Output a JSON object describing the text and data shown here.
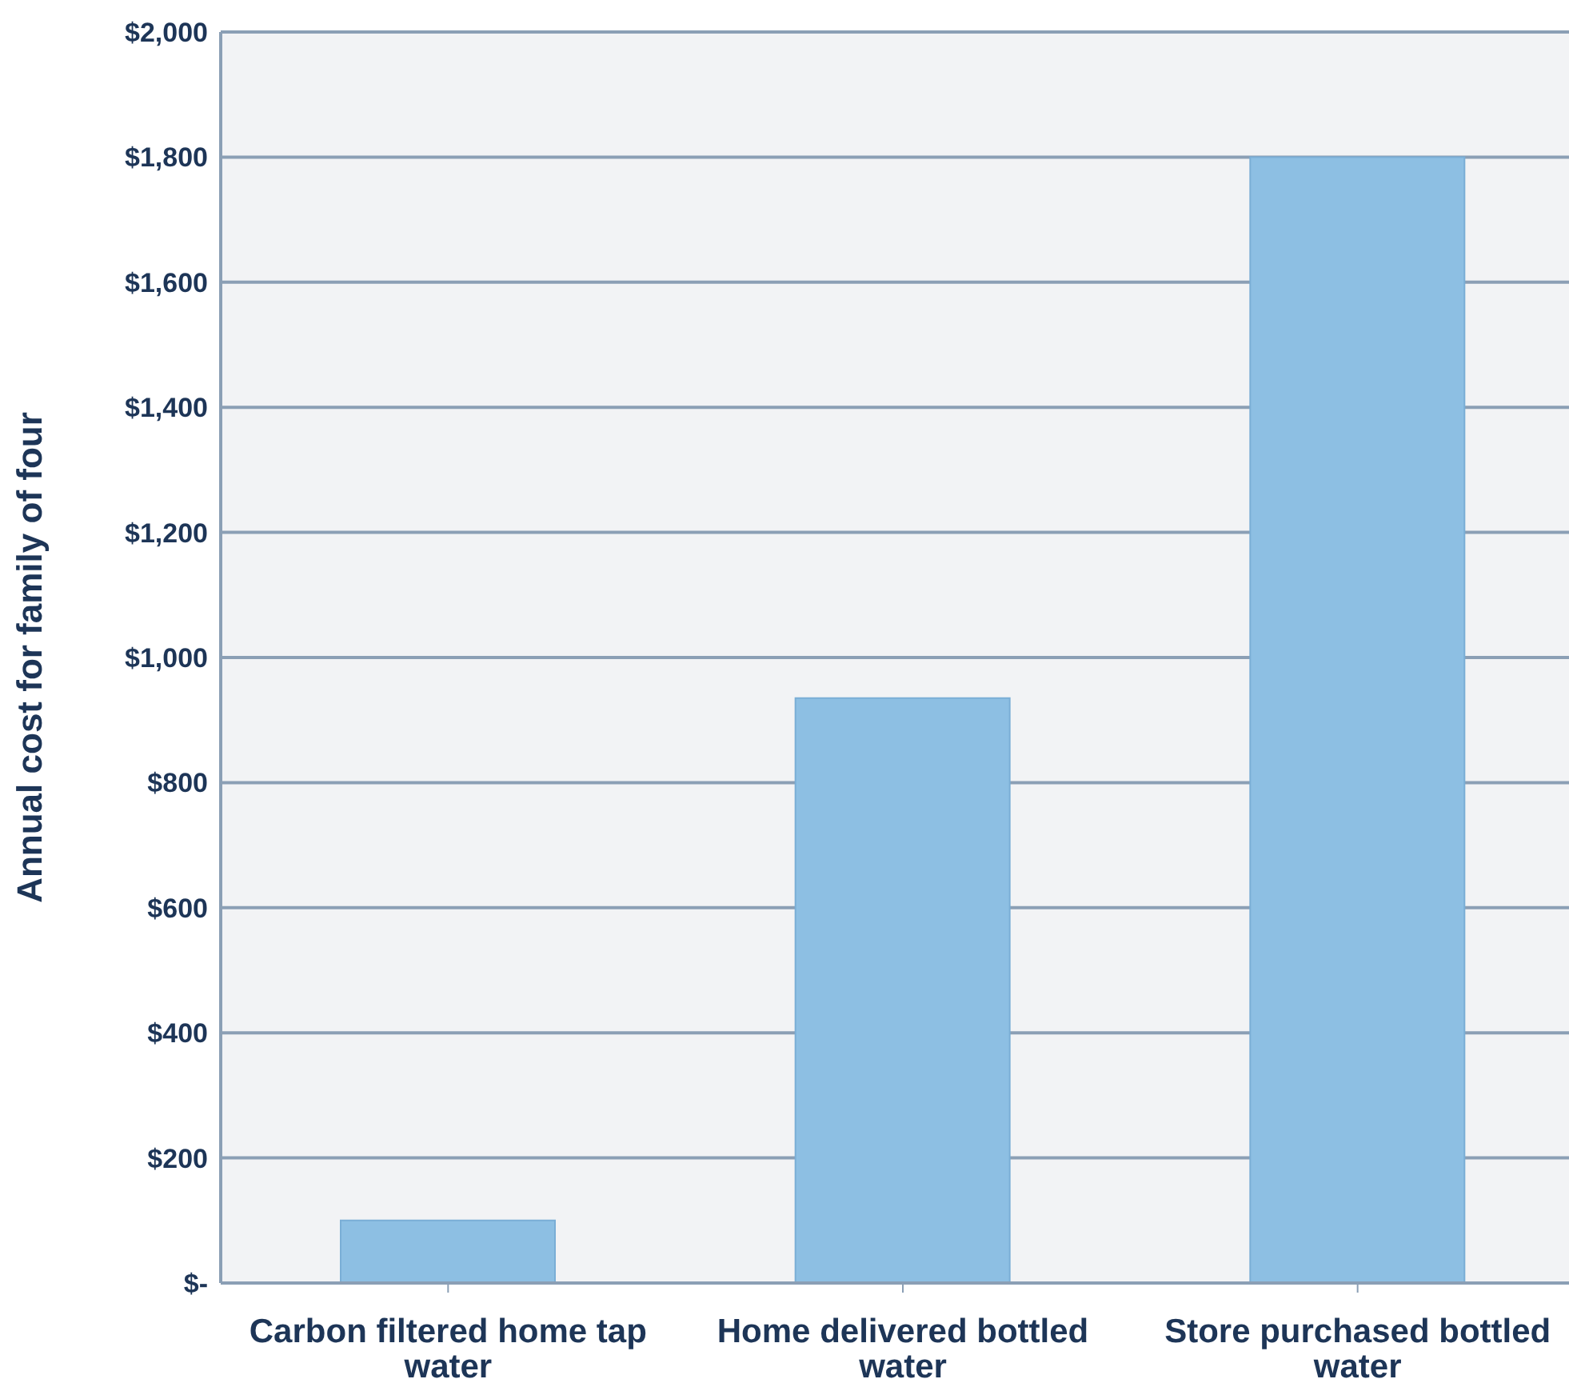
{
  "chart_data": {
    "type": "bar",
    "ylabel": "Annual cost for family of four",
    "categories": [
      "Carbon filtered home tap water",
      "Home delivered bottled water",
      "Store purchased bottled water"
    ],
    "values": [
      100,
      935,
      1800
    ],
    "color": "#8dbfe3",
    "ylim": [
      0,
      2000
    ],
    "yticks": [
      {
        "value": 0,
        "label": "$-"
      },
      {
        "value": 200,
        "label": "$200"
      },
      {
        "value": 400,
        "label": "$400"
      },
      {
        "value": 600,
        "label": "$600"
      },
      {
        "value": 800,
        "label": "$800"
      },
      {
        "value": 1000,
        "label": "$1,000"
      },
      {
        "value": 1200,
        "label": "$1,200"
      },
      {
        "value": 1400,
        "label": "$1,400"
      },
      {
        "value": 1600,
        "label": "$1,600"
      },
      {
        "value": 1800,
        "label": "$1,800"
      },
      {
        "value": 2000,
        "label": "$2,000"
      }
    ],
    "grid": "y"
  }
}
